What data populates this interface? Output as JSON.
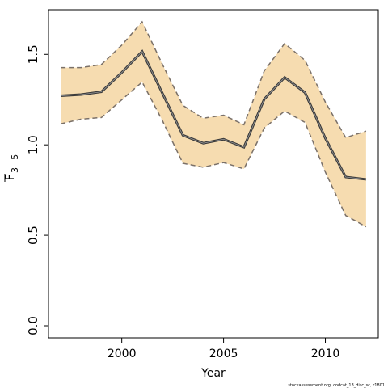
{
  "chart_data": {
    "type": "line",
    "xlabel": "Year",
    "ylabel": "F",
    "ylabel_sub": "3−5",
    "footnote": "stockassessment.org, codcat_13_disc_sc, r1801",
    "x": [
      1997,
      1998,
      1999,
      2000,
      2001,
      2002,
      2003,
      2004,
      2005,
      2006,
      2007,
      2008,
      2009,
      2010,
      2011,
      2012
    ],
    "values": [
      1.271,
      1.278,
      1.293,
      1.4,
      1.516,
      1.284,
      1.053,
      1.009,
      1.031,
      0.987,
      1.253,
      1.373,
      1.289,
      1.036,
      0.822,
      0.809
    ],
    "upper": [
      1.427,
      1.427,
      1.444,
      1.551,
      1.68,
      1.444,
      1.218,
      1.147,
      1.164,
      1.111,
      1.409,
      1.56,
      1.467,
      1.236,
      1.04,
      1.076
    ],
    "lower": [
      1.116,
      1.142,
      1.151,
      1.249,
      1.347,
      1.133,
      0.898,
      0.876,
      0.902,
      0.867,
      1.093,
      1.187,
      1.124,
      0.849,
      0.609,
      0.547
    ],
    "color": "#3a3a3a",
    "band_color": "#f6dcb0",
    "band_edge_color": "#7a7068",
    "xlim": [
      1996.4,
      2012.6
    ],
    "ylim": [
      -0.067,
      1.747
    ],
    "xticks": [
      2000,
      2005,
      2010
    ],
    "yticks": [
      {
        "value": 0,
        "label": "0.0"
      },
      0.5,
      {
        "value": 1,
        "label": "1.0"
      },
      1.5
    ]
  }
}
